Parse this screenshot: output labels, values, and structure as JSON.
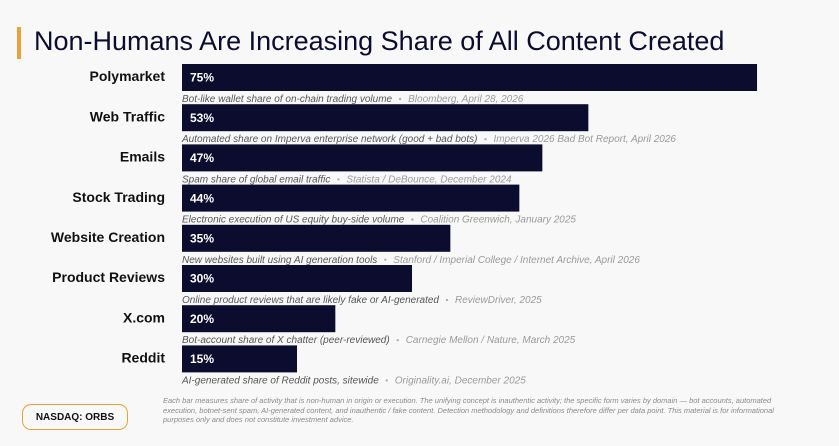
{
  "chart_data": {
    "type": "bar",
    "title": "Non-Humans Are Increasing Share of All Content Created",
    "categories": [
      "Polymarket",
      "Web Traffic",
      "Emails",
      "Stock Trading",
      "Website Creation",
      "Product Reviews",
      "X.com",
      "Reddit"
    ],
    "values": [
      75,
      53,
      47,
      44,
      35,
      30,
      20,
      15
    ],
    "value_labels": [
      "75%",
      "53%",
      "47%",
      "44%",
      "35%",
      "30%",
      "20%",
      "15%"
    ],
    "notes": [
      "Bot-like wallet share of on-chain trading volume",
      "Automated share on Imperva enterprise network (good + bad bots)",
      "Spam share of global email traffic",
      "Electronic execution of US equity buy-side volume",
      "New websites built using AI generation tools",
      "Online product reviews that are likely fake or AI-generated",
      "Bot-account share of X chatter (peer-reviewed)",
      "AI-generated share of Reddit posts, sitewide"
    ],
    "sources": [
      "Bloomberg, April 28, 2026",
      "Imperva 2026 Bad Bot Report, April 2026",
      "Statista / DeBounce, December 2024",
      "Coalition Greenwich, January 2025",
      "Stanford / Imperial College / Internet Archive, April 2026",
      "ReviewDriver, 2025",
      "Carnegie Mellon / Nature, March 2025",
      "Originality.ai, December 2025"
    ],
    "color": "#0c0c2e",
    "footnote": "Each bar measures share of activity that is non-human in origin or execution. The unifying concept is inauthentic activity; the specific form varies by domain — bot accounts, automated execution, botnet-sent spam, AI-generated content, and inauthentic / fake content. Detection methodology and definitions therefore differ per data point. This material is for informational purposes only and does not constitute investment advice.",
    "badge": "NASDAQ: ORBS"
  }
}
